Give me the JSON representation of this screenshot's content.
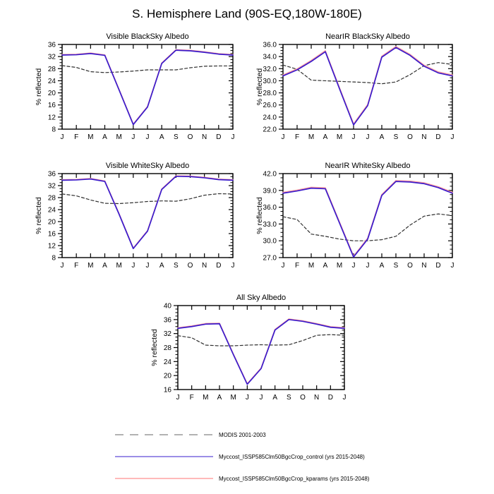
{
  "page": {
    "title": "S. Hemisphere Land (90S-EQ,180W-180E)"
  },
  "months": [
    "J",
    "F",
    "M",
    "A",
    "M",
    "J",
    "J",
    "A",
    "S",
    "O",
    "N",
    "D",
    "J"
  ],
  "colors": {
    "modis_plot": "#303030",
    "modis_legend": "#b2b2b2",
    "control": "#3a1ccc",
    "kparams": "#ff9d9d",
    "axis": "#000000"
  },
  "legend": {
    "position": "bottom",
    "items": [
      {
        "label": "MODIS 2001-2003",
        "color": "#b2b2b2",
        "dash": "12 9",
        "width": 2
      },
      {
        "label": "Myccost_ISSP585Clm50BgcCrop_control (yrs 2015-2048)",
        "color": "#3a1ccc",
        "dash": "",
        "width": 1
      },
      {
        "label": "Myccost_ISSP585Clm50BgcCrop_kparams (yrs 2015-2048)",
        "color": "#ffa3a3",
        "dash": "",
        "width": 1.5
      }
    ]
  },
  "chart_data": [
    {
      "type": "line",
      "title": "Visible BlackSky Albedo",
      "ylabel": "% reflected",
      "categories": [
        "J",
        "F",
        "M",
        "A",
        "M",
        "J",
        "J",
        "A",
        "S",
        "O",
        "N",
        "D",
        "J"
      ],
      "ylim": [
        8,
        36
      ],
      "ytick_step": 4,
      "ytick_decimals": 0,
      "grid": false,
      "series": [
        {
          "name": "MODIS 2001-2003",
          "color": "#303030",
          "dash": "4 3",
          "width": 1.2,
          "values": [
            29.0,
            28.4,
            27.0,
            26.7,
            26.9,
            27.2,
            27.6,
            27.6,
            27.6,
            28.3,
            28.8,
            28.9,
            28.9
          ]
        },
        {
          "name": "Myccost_ISSP585Clm50BgcCrop_kparams (yrs 2015-2048)",
          "color": "#ff9d9d",
          "dash": "",
          "width": 1.7,
          "values": [
            32.65,
            32.75,
            33.15,
            32.55,
            21.15,
            9.65,
            15.45,
            29.85,
            34.25,
            34.05,
            33.55,
            32.95,
            32.65
          ]
        },
        {
          "name": "Myccost_ISSP585Clm50BgcCrop_control (yrs 2015-2048)",
          "color": "#3a1ccc",
          "dash": "",
          "width": 1.7,
          "values": [
            32.5,
            32.6,
            33.0,
            32.4,
            21.0,
            9.5,
            15.3,
            29.7,
            34.1,
            33.9,
            33.4,
            32.8,
            32.5
          ]
        }
      ]
    },
    {
      "type": "line",
      "title": "NearIR BlackSky Albedo",
      "ylabel": "% reflected",
      "categories": [
        "J",
        "F",
        "M",
        "A",
        "M",
        "J",
        "J",
        "A",
        "S",
        "O",
        "N",
        "D",
        "J"
      ],
      "ylim": [
        22,
        36
      ],
      "ytick_step": 2,
      "ytick_decimals": 1,
      "grid": false,
      "series": [
        {
          "name": "MODIS 2001-2003",
          "color": "#303030",
          "dash": "4 3",
          "width": 1.2,
          "values": [
            32.6,
            31.9,
            30.1,
            30.0,
            29.9,
            29.8,
            29.7,
            29.5,
            29.8,
            31.0,
            32.5,
            33.0,
            32.7
          ]
        },
        {
          "name": "Myccost_ISSP585Clm50BgcCrop_kparams (yrs 2015-2048)",
          "color": "#ff9d9d",
          "dash": "",
          "width": 1.7,
          "values": [
            30.95,
            31.95,
            33.35,
            34.95,
            28.85,
            22.85,
            26.05,
            34.05,
            35.65,
            34.35,
            32.55,
            31.45,
            30.95
          ]
        },
        {
          "name": "Myccost_ISSP585Clm50BgcCrop_control (yrs 2015-2048)",
          "color": "#3a1ccc",
          "dash": "",
          "width": 1.7,
          "values": [
            30.8,
            31.8,
            33.2,
            34.8,
            28.7,
            22.7,
            25.9,
            33.9,
            35.5,
            34.2,
            32.4,
            31.3,
            30.8
          ]
        }
      ]
    },
    {
      "type": "line",
      "title": "Visible WhiteSky Albedo",
      "ylabel": "% reflected",
      "categories": [
        "J",
        "F",
        "M",
        "A",
        "M",
        "J",
        "J",
        "A",
        "S",
        "O",
        "N",
        "D",
        "J"
      ],
      "ylim": [
        8,
        36
      ],
      "ytick_step": 4,
      "ytick_decimals": 0,
      "grid": false,
      "series": [
        {
          "name": "MODIS 2001-2003",
          "color": "#303030",
          "dash": "4 3",
          "width": 1.2,
          "values": [
            29.2,
            28.6,
            27.2,
            26.1,
            26.0,
            26.3,
            26.7,
            26.9,
            26.8,
            27.6,
            28.8,
            29.3,
            29.2
          ]
        },
        {
          "name": "Myccost_ISSP585Clm50BgcCrop_kparams (yrs 2015-2048)",
          "color": "#ff9d9d",
          "dash": "",
          "width": 1.7,
          "values": [
            33.95,
            34.05,
            34.35,
            33.55,
            22.65,
            11.15,
            16.95,
            30.85,
            35.25,
            35.15,
            34.75,
            34.15,
            33.95
          ]
        },
        {
          "name": "Myccost_ISSP585Clm50BgcCrop_control (yrs 2015-2048)",
          "color": "#3a1ccc",
          "dash": "",
          "width": 1.7,
          "values": [
            33.8,
            33.9,
            34.2,
            33.4,
            22.5,
            11.0,
            16.8,
            30.7,
            35.1,
            35.0,
            34.6,
            34.0,
            33.8
          ]
        }
      ]
    },
    {
      "type": "line",
      "title": "NearIR WhiteSky Albedo",
      "ylabel": "% reflected",
      "categories": [
        "J",
        "F",
        "M",
        "A",
        "M",
        "J",
        "J",
        "A",
        "S",
        "O",
        "N",
        "D",
        "J"
      ],
      "ylim": [
        27,
        42
      ],
      "ytick_step": 3,
      "ytick_decimals": 1,
      "grid": false,
      "series": [
        {
          "name": "MODIS 2001-2003",
          "color": "#303030",
          "dash": "4 3",
          "width": 1.2,
          "values": [
            34.3,
            33.8,
            31.2,
            30.8,
            30.3,
            30.0,
            30.0,
            30.2,
            30.8,
            32.8,
            34.4,
            34.8,
            34.5
          ]
        },
        {
          "name": "Myccost_ISSP585Clm50BgcCrop_kparams (yrs 2015-2048)",
          "color": "#ff9d9d",
          "dash": "",
          "width": 1.7,
          "values": [
            38.65,
            39.05,
            39.55,
            39.45,
            33.35,
            27.25,
            30.45,
            38.25,
            40.75,
            40.65,
            40.35,
            39.65,
            38.65
          ]
        },
        {
          "name": "Myccost_ISSP585Clm50BgcCrop_control (yrs 2015-2048)",
          "color": "#3a1ccc",
          "dash": "",
          "width": 1.7,
          "values": [
            38.5,
            38.9,
            39.4,
            39.3,
            33.2,
            27.1,
            30.3,
            38.1,
            40.6,
            40.5,
            40.2,
            39.5,
            38.5
          ]
        }
      ]
    },
    {
      "type": "line",
      "title": "All Sky Albedo",
      "ylabel": "% reflected",
      "categories": [
        "J",
        "F",
        "M",
        "A",
        "M",
        "J",
        "J",
        "A",
        "S",
        "O",
        "N",
        "D",
        "J"
      ],
      "ylim": [
        16,
        40
      ],
      "ytick_step": 4,
      "ytick_decimals": 0,
      "grid": false,
      "series": [
        {
          "name": "MODIS 2001-2003",
          "color": "#303030",
          "dash": "4 3",
          "width": 1.2,
          "values": [
            31.4,
            30.8,
            28.7,
            28.5,
            28.5,
            28.7,
            28.8,
            28.7,
            28.8,
            30.0,
            31.5,
            31.7,
            31.5
          ]
        },
        {
          "name": "Myccost_ISSP585Clm50BgcCrop_kparams (yrs 2015-2048)",
          "color": "#ff9d9d",
          "dash": "",
          "width": 1.7,
          "values": [
            33.65,
            34.15,
            34.85,
            34.95,
            26.15,
            17.65,
            22.15,
            33.15,
            36.15,
            35.65,
            34.85,
            33.95,
            33.65
          ]
        },
        {
          "name": "Myccost_ISSP585Clm50BgcCrop_control (yrs 2015-2048)",
          "color": "#3a1ccc",
          "dash": "",
          "width": 1.7,
          "values": [
            33.5,
            34.0,
            34.7,
            34.8,
            26.0,
            17.5,
            22.0,
            33.0,
            36.0,
            35.5,
            34.7,
            33.8,
            33.5
          ]
        }
      ]
    }
  ]
}
